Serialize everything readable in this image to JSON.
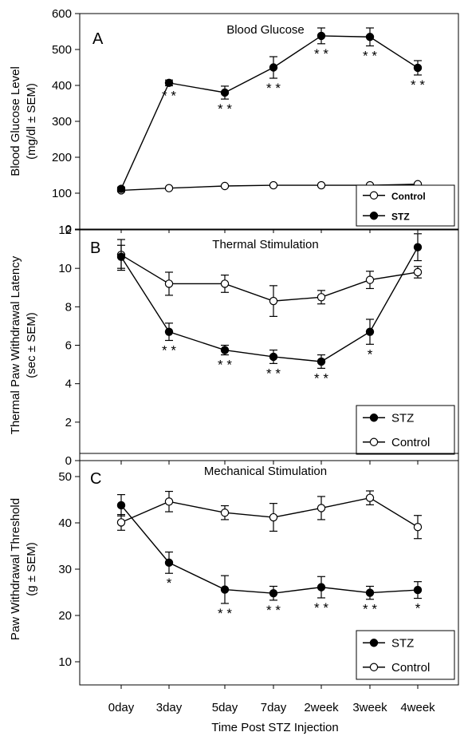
{
  "chart_data": [
    {
      "type": "line",
      "panel_letter": "A",
      "title": "Blood Glucose",
      "ylabel": [
        "Blood Glucose Level",
        "(mg/dl ± SEM)"
      ],
      "xlabel": "",
      "categories": [
        "0day",
        "3day",
        "5day",
        "7day",
        "2week",
        "3week",
        "4week"
      ],
      "ylim": [
        0,
        600
      ],
      "yticks": [
        0,
        100,
        200,
        300,
        400,
        500,
        600
      ],
      "grid": false,
      "legend": {
        "placement": "bottom-right",
        "bold": true,
        "order": [
          "Control",
          "STZ"
        ]
      },
      "series": [
        {
          "name": "Control",
          "marker": "open",
          "values": [
            108,
            114,
            120,
            122,
            122,
            122,
            125
          ],
          "sem": [
            4,
            3,
            3,
            3,
            3,
            3,
            3
          ]
        },
        {
          "name": "STZ",
          "marker": "filled",
          "values": [
            112,
            407,
            380,
            450,
            538,
            535,
            449
          ],
          "sem": [
            5,
            8,
            18,
            30,
            22,
            25,
            20
          ]
        }
      ],
      "significance": [
        "",
        "* *",
        "* *",
        "* *",
        "* *",
        "* *",
        "* *"
      ]
    },
    {
      "type": "line",
      "panel_letter": "B",
      "title": "Thermal Stimulation",
      "ylabel": [
        "Thermal Paw Withdrawal Latency",
        "(sec ± SEM)"
      ],
      "xlabel": "",
      "categories": [
        "0day",
        "3day",
        "5day",
        "7day",
        "2week",
        "3week",
        "4week"
      ],
      "ylim": [
        0,
        12
      ],
      "yticks": [
        0,
        2,
        4,
        6,
        8,
        10,
        12
      ],
      "grid": false,
      "legend": {
        "placement": "bottom-right",
        "bold": false,
        "order": [
          "STZ",
          "Control"
        ]
      },
      "series": [
        {
          "name": "STZ",
          "marker": "filled",
          "values": [
            10.6,
            6.7,
            5.75,
            5.4,
            5.15,
            6.7,
            11.1
          ],
          "sem": [
            0.6,
            0.45,
            0.25,
            0.35,
            0.35,
            0.65,
            0.7
          ]
        },
        {
          "name": "Control",
          "marker": "open",
          "values": [
            10.7,
            9.2,
            9.2,
            8.3,
            8.5,
            9.4,
            9.8
          ],
          "sem": [
            0.8,
            0.6,
            0.45,
            0.8,
            0.35,
            0.45,
            0.3
          ]
        }
      ],
      "significance": [
        "",
        "* *",
        "* *",
        "* *",
        "* *",
        "*",
        ""
      ]
    },
    {
      "type": "line",
      "panel_letter": "C",
      "title": "Mechanical Stimulation",
      "ylabel": [
        "Paw Withdrawal Threshold",
        "(g ± SEM)"
      ],
      "xlabel": "Time Post STZ Injection",
      "categories": [
        "0day",
        "3day",
        "5day",
        "7day",
        "2week",
        "3week",
        "4week"
      ],
      "ylim": [
        5,
        55
      ],
      "yticks": [
        10,
        20,
        30,
        40,
        50
      ],
      "grid": false,
      "legend": {
        "placement": "bottom-right",
        "bold": false,
        "order": [
          "STZ",
          "Control"
        ]
      },
      "series": [
        {
          "name": "STZ",
          "marker": "filled",
          "values": [
            43.8,
            31.4,
            25.6,
            24.8,
            26.1,
            24.9,
            25.5
          ],
          "sem": [
            2.3,
            2.3,
            3,
            1.5,
            2.3,
            1.4,
            1.8
          ]
        },
        {
          "name": "Control",
          "marker": "open",
          "values": [
            40.1,
            44.6,
            42.2,
            41.2,
            43.2,
            45.4,
            39.1
          ],
          "sem": [
            1.7,
            2.2,
            1.5,
            3,
            2.5,
            1.5,
            2.5
          ]
        }
      ],
      "significance": [
        "",
        "*",
        "* *",
        "* *",
        "* *",
        "* *",
        "*"
      ]
    }
  ]
}
